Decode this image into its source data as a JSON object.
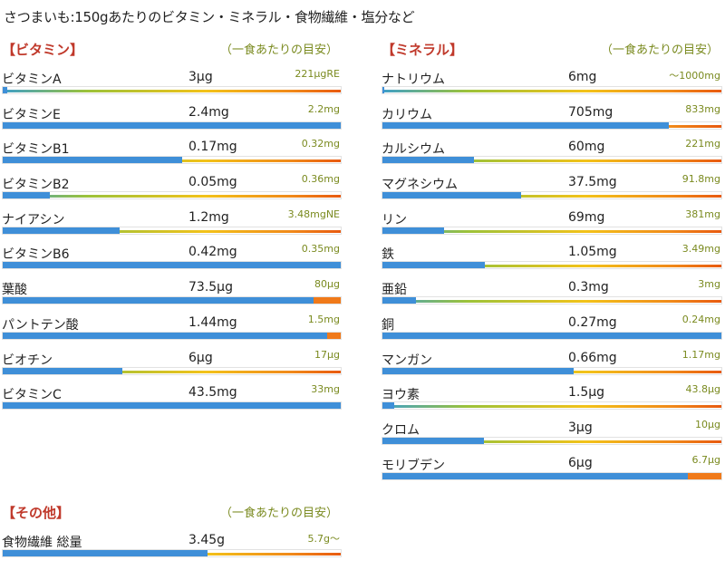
{
  "page_title": "さつまいも:150gあたりのビタミン・ミネラル・食物繊維・塩分など",
  "colors": {
    "section_label": "#c0392b",
    "note": "#7a8a1f",
    "bar_fill": "#3f8fd8",
    "bar_over": "#f07a1a"
  },
  "vitamins": {
    "label": "【ビタミン】",
    "note": "（一食あたりの目安）",
    "items": [
      {
        "name": "ビタミンA",
        "amount": "3μg",
        "target": "221μgRE",
        "level": 0.014
      },
      {
        "name": "ビタミンE",
        "amount": "2.4mg",
        "target": "2.2mg",
        "level": 1.0
      },
      {
        "name": "ビタミンB1",
        "amount": "0.17mg",
        "target": "0.32mg",
        "level": 0.53
      },
      {
        "name": "ビタミンB2",
        "amount": "0.05mg",
        "target": "0.36mg",
        "level": 0.14
      },
      {
        "name": "ナイアシン",
        "amount": "1.2mg",
        "target": "3.48mgNE",
        "level": 0.345
      },
      {
        "name": "ビタミンB6",
        "amount": "0.42mg",
        "target": "0.35mg",
        "level": 1.0
      },
      {
        "name": "葉酸",
        "amount": "73.5μg",
        "target": "80μg",
        "level": 0.92
      },
      {
        "name": "パントテン酸",
        "amount": "1.44mg",
        "target": "1.5mg",
        "level": 0.96
      },
      {
        "name": "ビオチン",
        "amount": "6μg",
        "target": "17μg",
        "level": 0.353
      },
      {
        "name": "ビタミンC",
        "amount": "43.5mg",
        "target": "33mg",
        "level": 1.0
      }
    ]
  },
  "minerals": {
    "label": "【ミネラル】",
    "note": "（一食あたりの目安）",
    "items": [
      {
        "name": "ナトリウム",
        "amount": "6mg",
        "target": "〜1000mg",
        "level": 0.006
      },
      {
        "name": "カリウム",
        "amount": "705mg",
        "target": "833mg",
        "level": 0.846
      },
      {
        "name": "カルシウム",
        "amount": "60mg",
        "target": "221mg",
        "level": 0.271
      },
      {
        "name": "マグネシウム",
        "amount": "37.5mg",
        "target": "91.8mg",
        "level": 0.408
      },
      {
        "name": "リン",
        "amount": "69mg",
        "target": "381mg",
        "level": 0.181
      },
      {
        "name": "鉄",
        "amount": "1.05mg",
        "target": "3.49mg",
        "level": 0.301
      },
      {
        "name": "亜鉛",
        "amount": "0.3mg",
        "target": "3mg",
        "level": 0.1
      },
      {
        "name": "銅",
        "amount": "0.27mg",
        "target": "0.24mg",
        "level": 1.0
      },
      {
        "name": "マンガン",
        "amount": "0.66mg",
        "target": "1.17mg",
        "level": 0.564
      },
      {
        "name": "ヨウ素",
        "amount": "1.5μg",
        "target": "43.8μg",
        "level": 0.034
      },
      {
        "name": "クロム",
        "amount": "3μg",
        "target": "10μg",
        "level": 0.3
      },
      {
        "name": "モリブデン",
        "amount": "6μg",
        "target": "6.7μg",
        "level": 0.9
      }
    ]
  },
  "others": {
    "label": "【その他】",
    "note": "（一食あたりの目安）",
    "items": [
      {
        "name": "食物繊維 総量",
        "amount": "3.45g",
        "target": "5.7g〜",
        "level": 0.605
      }
    ]
  }
}
